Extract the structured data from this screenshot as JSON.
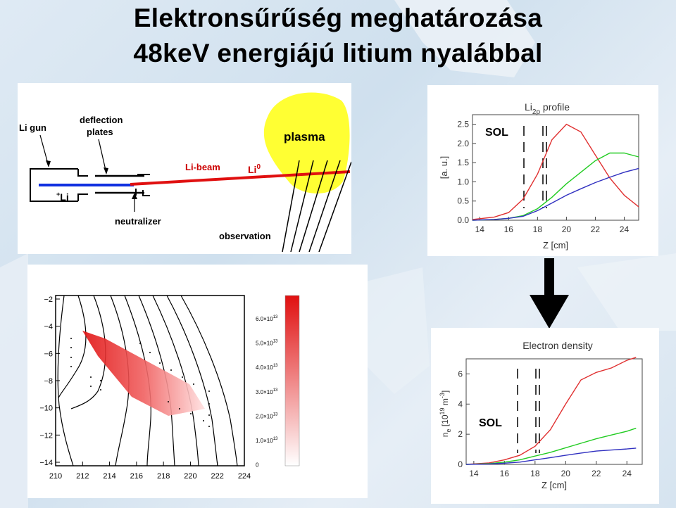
{
  "title": {
    "line1": "Elektronsűrűség meghatározása",
    "line2": "48keV energiájú litium nyalábbal"
  },
  "beam_diagram": {
    "li_gun": "Li gun",
    "deflection_line1": "deflection",
    "deflection_line2": "plates",
    "plasma": "plasma",
    "li_beam": "Li-beam",
    "li0": "Li",
    "li0_sup": "0",
    "li_plus_sup": "+",
    "li_plus": "Li",
    "neutralizer": "neutralizer",
    "observation": "observation",
    "colors": {
      "plasma": "#ffff33",
      "beam": "#e01010",
      "ion_beam": "#1030e0",
      "label": "#cc0000"
    }
  },
  "profile_chart": {
    "title_main": "Li",
    "title_sub": "2p",
    "title_rest": " profile",
    "sol": "SOL",
    "ylabel": "[a. u.]",
    "xlabel": "Z [cm]",
    "x_ticks": [
      "14",
      "16",
      "18",
      "20",
      "22",
      "24"
    ],
    "y_ticks": [
      "0.0",
      "0.5",
      "1.0",
      "1.5",
      "2.0",
      "2.5"
    ]
  },
  "density_chart": {
    "title": "Electron density",
    "sol": "SOL",
    "ylabel": "n_e [10^19 m^-3]",
    "ylabel_n": "n",
    "ylabel_e": "e",
    "ylabel_unit": " [10",
    "ylabel_exp1": "19",
    "ylabel_m": " m",
    "ylabel_exp2": "-3",
    "ylabel_close": "]",
    "xlabel": "Z [cm]",
    "x_ticks": [
      "14",
      "16",
      "18",
      "20",
      "22",
      "24"
    ],
    "y_ticks": [
      "0",
      "2",
      "4",
      "6"
    ]
  },
  "contour_map": {
    "x_ticks": [
      "210",
      "212",
      "214",
      "216",
      "218",
      "220",
      "222",
      "224"
    ],
    "y_ticks": [
      "−2",
      "−4",
      "−6",
      "−8",
      "−10",
      "−12",
      "−14"
    ],
    "colorbar_labels": [
      "6.0×10",
      "5.0×10",
      "4.0×10",
      "3.0×10",
      "2.0×10",
      "1.0×10",
      "0"
    ],
    "colorbar_exp": "13"
  },
  "chart_data": [
    {
      "type": "line",
      "title": "Li2p profile",
      "xlabel": "Z [cm]",
      "ylabel": "[a. u.]",
      "xlim": [
        13.5,
        25
      ],
      "ylim": [
        0,
        2.75
      ],
      "annotations": [
        "SOL"
      ],
      "series": [
        {
          "color": "#e03030",
          "x": [
            13.5,
            15,
            16,
            17,
            18,
            19,
            20,
            21,
            22,
            23,
            24,
            25
          ],
          "y": [
            0.02,
            0.08,
            0.2,
            0.55,
            1.2,
            2.1,
            2.5,
            2.3,
            1.7,
            1.1,
            0.65,
            0.35
          ]
        },
        {
          "color": "#22cc22",
          "x": [
            13.5,
            15,
            16,
            17,
            18,
            19,
            20,
            21,
            22,
            23,
            24,
            25
          ],
          "y": [
            0.0,
            0.02,
            0.05,
            0.12,
            0.3,
            0.6,
            0.95,
            1.25,
            1.55,
            1.75,
            1.75,
            1.65
          ]
        },
        {
          "color": "#3030c0",
          "x": [
            13.5,
            15,
            16,
            17,
            18,
            19,
            20,
            21,
            22,
            23,
            24,
            25
          ],
          "y": [
            0.0,
            0.02,
            0.05,
            0.1,
            0.25,
            0.45,
            0.65,
            0.82,
            0.98,
            1.12,
            1.25,
            1.35
          ]
        }
      ]
    },
    {
      "type": "line",
      "title": "Electron density",
      "xlabel": "Z [cm]",
      "ylabel": "n_e [10^19 m^-3]",
      "xlim": [
        13.5,
        25
      ],
      "ylim": [
        0,
        7
      ],
      "annotations": [
        "SOL"
      ],
      "series": [
        {
          "color": "#e03030",
          "x": [
            13.5,
            15,
            16,
            17,
            18,
            19,
            20,
            21,
            22,
            23,
            24,
            24.6
          ],
          "y": [
            0.0,
            0.1,
            0.3,
            0.6,
            1.2,
            2.3,
            4.0,
            5.6,
            6.1,
            6.4,
            6.9,
            7.1
          ]
        },
        {
          "color": "#22cc22",
          "x": [
            13.5,
            15,
            16,
            17,
            18,
            19,
            20,
            21,
            22,
            23,
            24,
            24.6
          ],
          "y": [
            0.0,
            0.05,
            0.15,
            0.3,
            0.55,
            0.8,
            1.1,
            1.4,
            1.7,
            1.95,
            2.2,
            2.4
          ]
        },
        {
          "color": "#3030c0",
          "x": [
            13.5,
            15,
            16,
            17,
            18,
            19,
            20,
            21,
            22,
            23,
            24,
            24.6
          ],
          "y": [
            0.0,
            0.03,
            0.08,
            0.15,
            0.3,
            0.45,
            0.6,
            0.75,
            0.88,
            0.95,
            1.02,
            1.08
          ]
        }
      ]
    }
  ]
}
